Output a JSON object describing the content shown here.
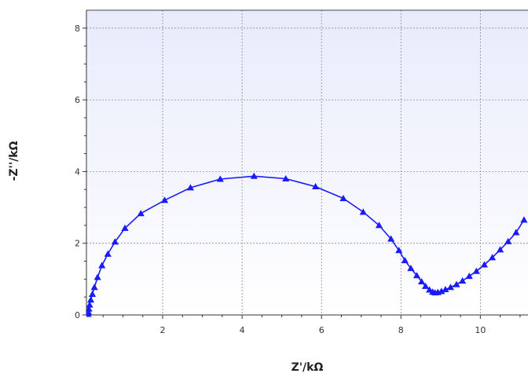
{
  "chart_data": {
    "type": "scatter",
    "xlabel": "Z'/kΩ",
    "ylabel": "-Z''/kΩ",
    "xlim": [
      0.08,
      11.2
    ],
    "ylim": [
      0,
      8.5
    ],
    "xticks": [
      2,
      4,
      6,
      8,
      10
    ],
    "yticks": [
      0,
      2,
      4,
      6,
      8
    ],
    "grid": true,
    "colors": {
      "series": "#1a1aff",
      "plot_bg_top": "#e8ebfb",
      "plot_bg_bottom": "#ffffff",
      "grid": "#8a8a8a"
    },
    "series": [
      {
        "marker": "triangle",
        "line": true,
        "x": [
          0.12,
          0.13,
          0.14,
          0.16,
          0.19,
          0.23,
          0.28,
          0.36,
          0.47,
          0.62,
          0.8,
          1.05,
          1.45,
          2.05,
          2.7,
          3.45,
          4.3,
          5.1,
          5.85,
          6.55,
          7.05,
          7.45,
          7.75,
          7.95,
          8.1,
          8.25,
          8.4,
          8.52,
          8.62,
          8.72,
          8.8,
          8.86,
          8.93,
          9.02,
          9.12,
          9.25,
          9.4,
          9.55,
          9.72,
          9.9,
          10.1,
          10.3,
          10.5,
          10.7,
          10.9,
          11.1
        ],
        "y": [
          0.02,
          0.08,
          0.17,
          0.28,
          0.42,
          0.58,
          0.77,
          1.05,
          1.38,
          1.7,
          2.04,
          2.42,
          2.83,
          3.2,
          3.55,
          3.79,
          3.87,
          3.8,
          3.58,
          3.25,
          2.87,
          2.5,
          2.12,
          1.8,
          1.52,
          1.3,
          1.1,
          0.93,
          0.8,
          0.7,
          0.64,
          0.62,
          0.63,
          0.66,
          0.71,
          0.77,
          0.85,
          0.95,
          1.08,
          1.22,
          1.4,
          1.6,
          1.82,
          2.05,
          2.3,
          2.65
        ]
      }
    ]
  }
}
